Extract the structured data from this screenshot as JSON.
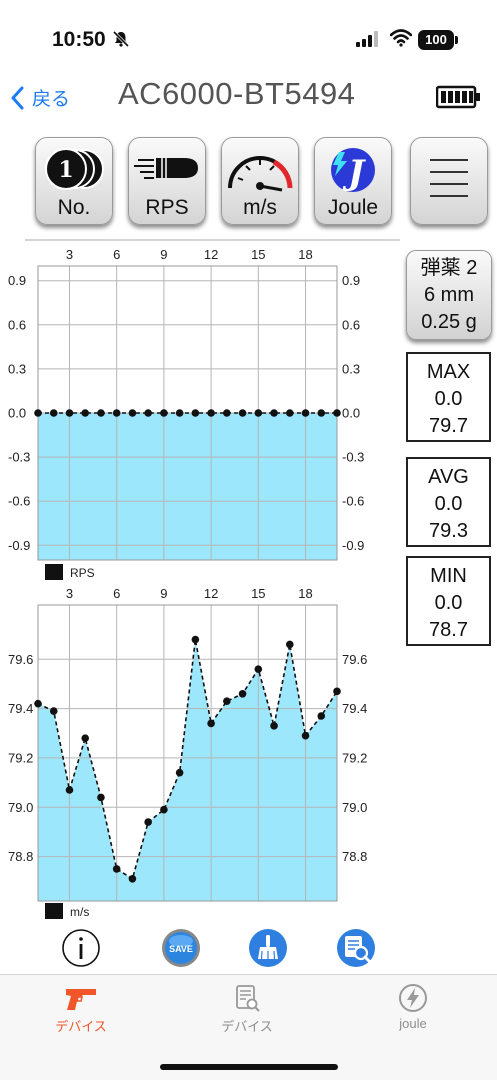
{
  "status_bar": {
    "time": "10:50",
    "battery": "100"
  },
  "nav": {
    "back_label": "戻る",
    "title": "AC6000-BT5494"
  },
  "toolbar": {
    "count_label": "No.",
    "rps_label": "RPS",
    "speed_label": "m/s",
    "joule_label": "Joule",
    "joule_icon_letter": "J",
    "count_icon_number": "1"
  },
  "ammo": {
    "line1": "弾薬 2",
    "line2": "6 mm",
    "line3": "0.25 g"
  },
  "stats": {
    "max": {
      "label": "MAX",
      "rps": "0.0",
      "speed": "79.7"
    },
    "avg": {
      "label": "AVG",
      "rps": "0.0",
      "speed": "79.3"
    },
    "min": {
      "label": "MIN",
      "rps": "0.0",
      "speed": "78.7"
    }
  },
  "actions": {
    "save_label": "SAVE"
  },
  "tabs": [
    {
      "label": "デバイス"
    },
    {
      "label": "デバイス"
    },
    {
      "label": "joule"
    }
  ],
  "colors": {
    "accent": "#1b7bf2",
    "fill": "#9ce7fb",
    "active_tab": "#f0562a"
  },
  "chart_data": [
    {
      "type": "line",
      "legend": "RPS",
      "x": [
        1,
        2,
        3,
        4,
        5,
        6,
        7,
        8,
        9,
        10,
        11,
        12,
        13,
        14,
        15,
        16,
        17,
        18,
        19,
        20
      ],
      "values": [
        0,
        0,
        0,
        0,
        0,
        0,
        0,
        0,
        0,
        0,
        0,
        0,
        0,
        0,
        0,
        0,
        0,
        0,
        0,
        0
      ],
      "xticks": [
        3,
        6,
        9,
        12,
        15,
        18
      ],
      "yticks": [
        0.9,
        0.6,
        0.3,
        0.0,
        -0.3,
        -0.6,
        -0.9
      ],
      "ylim": [
        -1.0,
        1.0
      ],
      "grid": true,
      "legend_placement": "bottom-left"
    },
    {
      "type": "line",
      "legend": "m/s",
      "x": [
        1,
        2,
        3,
        4,
        5,
        6,
        7,
        8,
        9,
        10,
        11,
        12,
        13,
        14,
        15,
        16,
        17,
        18,
        19,
        20
      ],
      "values": [
        79.42,
        79.39,
        79.07,
        79.28,
        79.04,
        78.75,
        78.71,
        78.94,
        78.99,
        79.14,
        79.68,
        79.34,
        79.43,
        79.46,
        79.56,
        79.33,
        79.66,
        79.29,
        79.37,
        79.47
      ],
      "xticks": [
        3,
        6,
        9,
        12,
        15,
        18
      ],
      "yticks": [
        79.6,
        79.4,
        79.2,
        79.0,
        78.8
      ],
      "ylim": [
        78.62,
        79.82
      ],
      "grid": true,
      "legend_placement": "bottom-left"
    }
  ]
}
